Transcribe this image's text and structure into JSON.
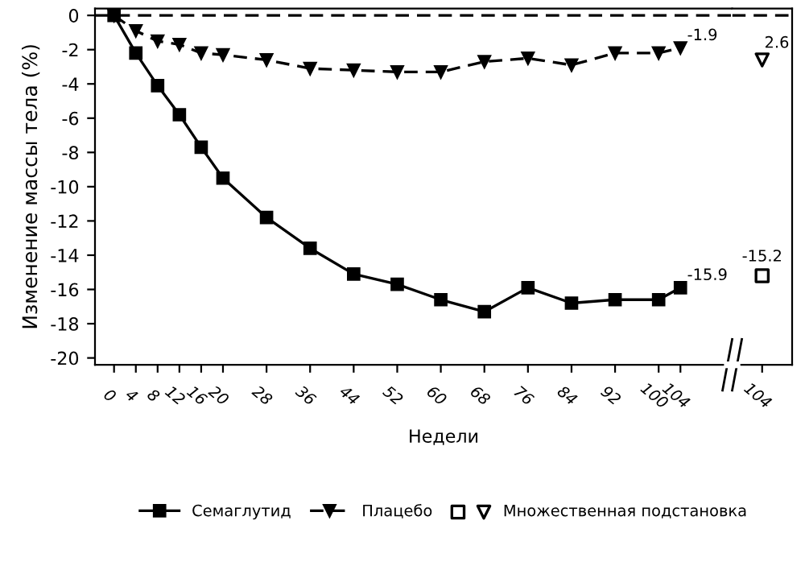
{
  "chart_data": [
    {
      "type": "line",
      "xlabel": "Недели",
      "ylabel": "Изменение массы тела (%)",
      "xlim": [
        -3.5,
        113.5
      ],
      "ylim": [
        -20.4,
        0.4
      ],
      "xticks": [
        0,
        4,
        8,
        12,
        16,
        20,
        28,
        36,
        44,
        52,
        60,
        68,
        76,
        84,
        92,
        100,
        104
      ],
      "yticks": [
        0,
        -2,
        -4,
        -6,
        -8,
        -10,
        -12,
        -14,
        -16,
        -18,
        -20
      ],
      "grid": false,
      "legend": "bottom",
      "ref_lines": [
        {
          "axis": "y",
          "value": 0,
          "color": "#000000",
          "line_style": "dashed"
        }
      ],
      "series": [
        {
          "name": "Семаглутид",
          "color": "#000000",
          "marker": "square",
          "line_style": "solid",
          "x": [
            0,
            4,
            8,
            12,
            16,
            20,
            28,
            36,
            44,
            52,
            60,
            68,
            76,
            84,
            92,
            100,
            104
          ],
          "values": [
            0,
            -2.2,
            -4.1,
            -5.8,
            -7.7,
            -9.5,
            -11.8,
            -13.6,
            -15.1,
            -15.7,
            -16.6,
            -17.3,
            -15.9,
            -16.8,
            -16.6,
            -16.6,
            -15.9
          ],
          "value_labels": [
            null,
            null,
            null,
            null,
            null,
            null,
            null,
            null,
            null,
            null,
            null,
            null,
            null,
            null,
            null,
            null,
            "-15.9"
          ]
        },
        {
          "name": "Плацебо",
          "color": "#000000",
          "marker": "triangle",
          "line_style": "dashed",
          "x": [
            0,
            4,
            8,
            12,
            16,
            20,
            28,
            36,
            44,
            52,
            60,
            68,
            76,
            84,
            92,
            100,
            104
          ],
          "values": [
            0,
            -0.9,
            -1.5,
            -1.7,
            -2.2,
            -2.3,
            -2.6,
            -3.1,
            -3.2,
            -3.3,
            -3.3,
            -2.7,
            -2.5,
            -2.9,
            -2.2,
            -2.2,
            -1.9
          ],
          "value_labels": [
            null,
            null,
            null,
            null,
            null,
            null,
            null,
            null,
            null,
            null,
            null,
            null,
            null,
            null,
            null,
            null,
            "-1.9"
          ]
        }
      ]
    },
    {
      "type": "scatter",
      "categories": [
        "104"
      ],
      "ylim": [
        -20.4,
        0.4
      ],
      "tick_labels": "x",
      "grid": false,
      "ref_lines": [
        {
          "axis": "y",
          "value": 0,
          "color": "#000000",
          "line_style": "dashed"
        }
      ],
      "annotations": [
        {
          "text": "2.6",
          "x": "104",
          "y": -2.6
        }
      ],
      "series": [
        {
          "color": "#000000",
          "marker": "square",
          "x": [
            "104"
          ],
          "values": [
            -15.2
          ],
          "value_labels": [
            "-15.2"
          ]
        },
        {
          "name": "Множественная подстановка",
          "color": "#000000",
          "marker": "triangle",
          "x": [
            "104"
          ],
          "values": [
            -2.6
          ]
        }
      ]
    }
  ]
}
